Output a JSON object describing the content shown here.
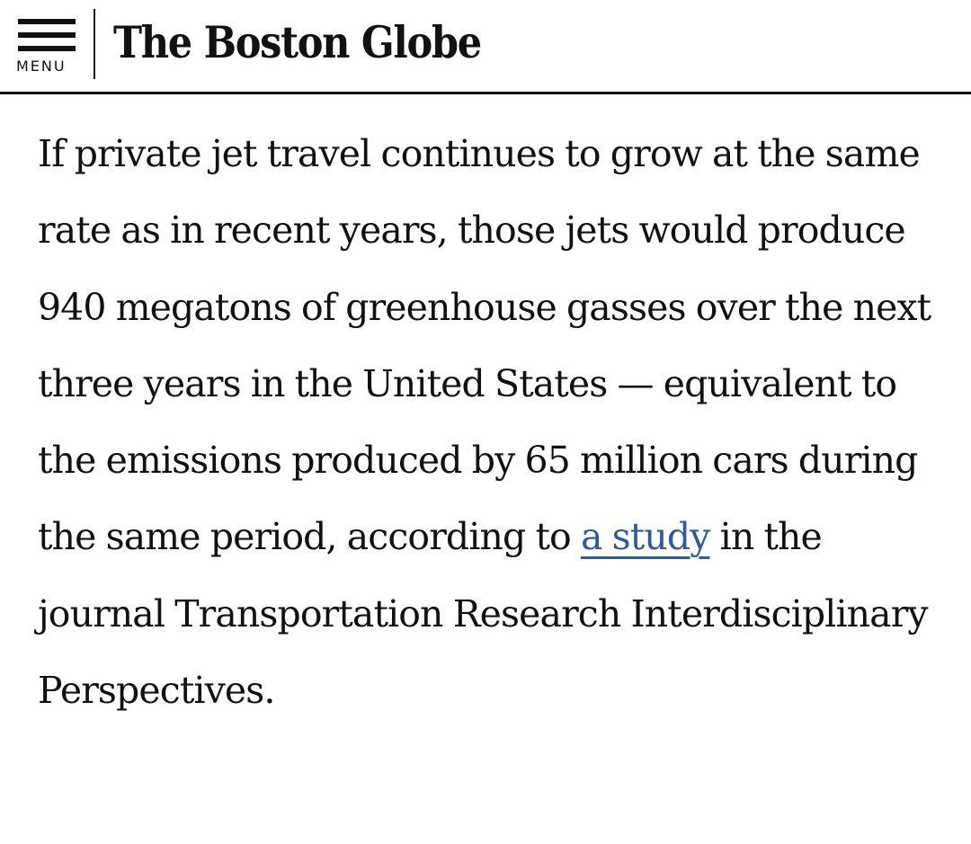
{
  "header": {
    "menu_label": "MENU",
    "logo_text": "The Boston Globe"
  },
  "article": {
    "paragraph_before_link": "If private jet travel continues to grow at the same rate as in recent years, those jets would produce 940 megatons of greenhouse gasses over the next three years in the United States — equivalent to the emissions produced by 65 million cars during the same period, according to ",
    "link_text": "a study",
    "paragraph_after_link": " in the journal Transportation Research Interdisciplinary Perspectives."
  },
  "colors": {
    "text": "#111111",
    "link": "#2d5aa8",
    "background": "#ffffff"
  }
}
